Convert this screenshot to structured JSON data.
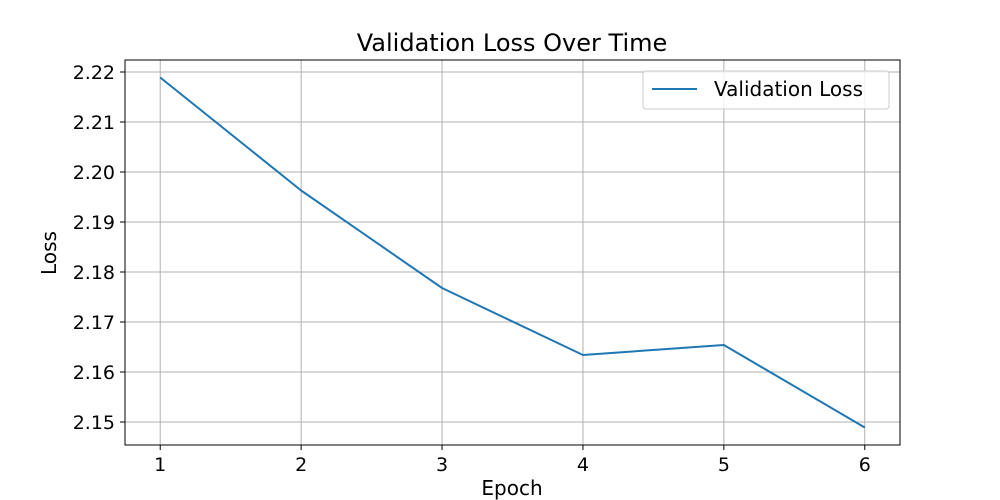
{
  "chart_data": {
    "type": "line",
    "title": "Validation Loss Over Time",
    "xlabel": "Epoch",
    "ylabel": "Loss",
    "x": [
      1,
      2,
      3,
      4,
      5,
      6
    ],
    "series": [
      {
        "name": "Validation Loss",
        "color": "#1f77b4",
        "values": [
          2.2189,
          2.1963,
          2.1768,
          2.1634,
          2.1654,
          2.1489
        ]
      }
    ],
    "xticks": [
      "1",
      "2",
      "3",
      "4",
      "5",
      "6"
    ],
    "xtick_values": [
      1,
      2,
      3,
      4,
      5,
      6
    ],
    "yticks": [
      "2.15",
      "2.16",
      "2.17",
      "2.18",
      "2.19",
      "2.20",
      "2.21",
      "2.22"
    ],
    "ytick_values": [
      2.15,
      2.16,
      2.17,
      2.18,
      2.19,
      2.2,
      2.21,
      2.22
    ],
    "xlim": [
      0.75,
      6.25
    ],
    "ylim": [
      2.1454,
      2.2224
    ],
    "grid": true,
    "legend_position": "top-right"
  }
}
